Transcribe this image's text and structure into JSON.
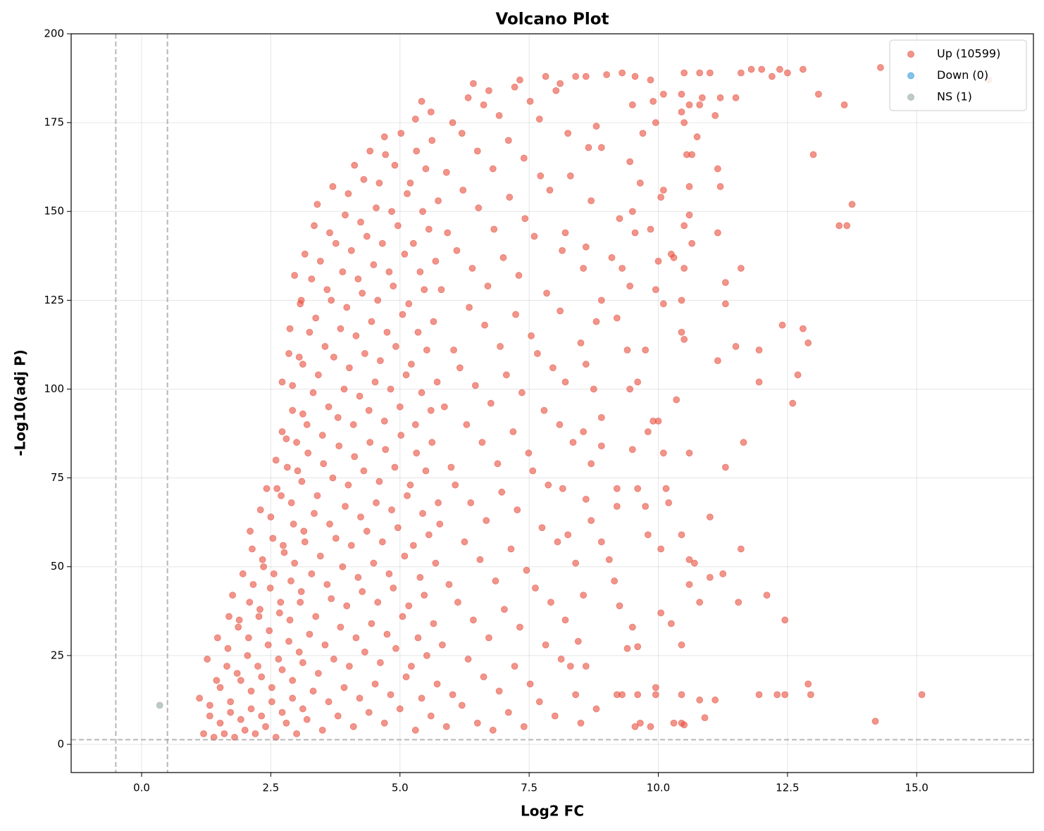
{
  "chart_data": {
    "type": "scatter",
    "title": "Volcano Plot",
    "x_label": "Log2 FC",
    "y_label": "-Log10(adj P)",
    "xlim": [
      -1.364,
      17.26
    ],
    "ylim": [
      -7.93,
      200
    ],
    "xticks": [
      {
        "value": 0,
        "label": "0.0"
      },
      2.5,
      {
        "value": 5,
        "label": "5.0"
      },
      7.5,
      {
        "value": 10,
        "label": "10.0"
      },
      12.5,
      {
        "value": 15,
        "label": "15.0"
      }
    ],
    "yticks": [
      0,
      25,
      50,
      75,
      100,
      125,
      150,
      175,
      200
    ],
    "grid": true,
    "legend": "upper right",
    "threshold_x": [
      -0.5,
      0.5
    ],
    "threshold_y": [
      1.3
    ],
    "series": [
      {
        "name": "Up (10599)",
        "color": "#e74c3c",
        "x": [
          16.4,
          14.3,
          13.6,
          13.1,
          13.0,
          13.75,
          13.5,
          13.65,
          12.8,
          12.35,
          12.0,
          11.8,
          11.6,
          12.5,
          12.2,
          11.5,
          11.2,
          11.1,
          11.15,
          11.2,
          11.15,
          11.6,
          11.3,
          11.3,
          12.4,
          12.8,
          12.9,
          11.95,
          11.5,
          11.15,
          12.7,
          11.95,
          12.6,
          11.65,
          11.3,
          11.0,
          11.6,
          11.25,
          11.0,
          12.1,
          11.55,
          12.45,
          12.9,
          12.95,
          12.3,
          12.45,
          11.95,
          11.1,
          10.8,
          14.2,
          15.1,
          10.6,
          10.7,
          10.8,
          10.6,
          10.9,
          10.45,
          10.3,
          10.5,
          10.45,
          10.25,
          10.05,
          9.95,
          9.95,
          10.45,
          10.05,
          10.45,
          10.2,
          10.15,
          10.6,
          10.1,
          10.35,
          9.9,
          10.0,
          9.8,
          9.95,
          10.1,
          10.3,
          10.25,
          10.5,
          10.45,
          10.45,
          10.5,
          10.5,
          10.6,
          10.65,
          10.0,
          10.05,
          10.1,
          10.6,
          10.55,
          10.75,
          10.65,
          10.5,
          10.45,
          10.6,
          10.8,
          10.1,
          10.45,
          10.5,
          10.8,
          11.0,
          10.85,
          9.7,
          9.95,
          9.9,
          9.85,
          9.55,
          9.3,
          9.0,
          9.5,
          9.45,
          9.65,
          9.5,
          9.85,
          9.55,
          9.25,
          9.1,
          9.45,
          9.3,
          9.2,
          9.4,
          9.75,
          9.6,
          9.45,
          9.5,
          9.6,
          9.2,
          9.2,
          9.75,
          9.8,
          8.9,
          9.05,
          9.25,
          9.5,
          9.6,
          9.4,
          9.2,
          9.3,
          9.6,
          9.55,
          9.65,
          9.85,
          9.15,
          8.8,
          8.65,
          8.9,
          8.7,
          8.6,
          8.55,
          8.9,
          8.8,
          8.5,
          8.6,
          8.75,
          8.9,
          8.55,
          8.9,
          8.7,
          8.6,
          8.7,
          8.4,
          8.55,
          8.45,
          8.6,
          8.4,
          8.8,
          8.5,
          8.3,
          8.2,
          8.25,
          8.15,
          8.35,
          8.2,
          8.1,
          8.2,
          8.3,
          8.25,
          8.1,
          8.4,
          8.6,
          1.2,
          1.32,
          1.12,
          1.4,
          1.52,
          1.32,
          1.45,
          1.27,
          1.6,
          1.72,
          1.52,
          1.65,
          1.47,
          1.69,
          1.8,
          1.92,
          1.72,
          1.85,
          1.67,
          1.89,
          1.76,
          2.0,
          2.12,
          1.92,
          2.05,
          1.87,
          2.09,
          1.96,
          2.14,
          2.2,
          2.32,
          2.12,
          2.25,
          2.07,
          2.29,
          2.16,
          2.34,
          2.1,
          2.4,
          2.52,
          2.32,
          2.45,
          2.27,
          2.49,
          2.36,
          2.54,
          2.3,
          2.42,
          2.6,
          2.72,
          2.52,
          2.65,
          2.47,
          2.69,
          2.56,
          2.74,
          2.5,
          2.62,
          2.6,
          2.72,
          2.8,
          2.92,
          2.72,
          2.85,
          2.67,
          2.89,
          2.76,
          2.94,
          2.7,
          2.82,
          2.8,
          2.92,
          2.72,
          2.85,
          3.0,
          3.12,
          2.92,
          3.05,
          2.87,
          3.09,
          2.96,
          3.14,
          2.9,
          3.02,
          3.0,
          3.12,
          2.92,
          3.05,
          2.87,
          3.09,
          2.96,
          3.2,
          3.32,
          3.12,
          3.25,
          3.07,
          3.29,
          3.16,
          3.34,
          3.1,
          3.22,
          3.2,
          3.32,
          3.12,
          3.25,
          3.07,
          3.29,
          3.16,
          3.34,
          3.5,
          3.62,
          3.42,
          3.55,
          3.37,
          3.59,
          3.46,
          3.64,
          3.4,
          3.52,
          3.5,
          3.62,
          3.42,
          3.55,
          3.37,
          3.59,
          3.46,
          3.64,
          3.4,
          3.8,
          3.92,
          3.72,
          3.85,
          3.67,
          3.89,
          3.76,
          3.94,
          3.7,
          3.82,
          3.8,
          3.92,
          3.72,
          3.85,
          3.67,
          3.89,
          3.76,
          3.94,
          3.7,
          4.1,
          4.22,
          4.02,
          4.15,
          3.97,
          4.19,
          4.06,
          4.24,
          4.0,
          4.12,
          4.1,
          4.22,
          4.02,
          4.15,
          3.97,
          4.19,
          4.06,
          4.24,
          4.0,
          4.12,
          4.4,
          4.52,
          4.32,
          4.45,
          4.27,
          4.49,
          4.36,
          4.54,
          4.3,
          4.42,
          4.4,
          4.52,
          4.32,
          4.45,
          4.27,
          4.49,
          4.36,
          4.54,
          4.3,
          4.42,
          4.7,
          4.82,
          4.62,
          4.75,
          4.57,
          4.79,
          4.66,
          4.84,
          4.6,
          4.72,
          4.7,
          4.82,
          4.62,
          4.75,
          4.57,
          4.79,
          4.66,
          4.84,
          4.6,
          4.72,
          4.7,
          5.0,
          5.12,
          4.92,
          5.05,
          4.87,
          5.09,
          4.96,
          5.14,
          4.9,
          5.02,
          5.0,
          5.12,
          4.92,
          5.05,
          4.87,
          5.09,
          4.96,
          5.14,
          4.9,
          5.02,
          5.3,
          5.42,
          5.22,
          5.35,
          5.17,
          5.39,
          5.26,
          5.44,
          5.2,
          5.32,
          5.3,
          5.42,
          5.22,
          5.35,
          5.17,
          5.39,
          5.26,
          5.44,
          5.2,
          5.32,
          5.3,
          5.42,
          5.6,
          5.72,
          5.52,
          5.65,
          5.47,
          5.69,
          5.56,
          5.74,
          5.5,
          5.62,
          5.6,
          5.72,
          5.52,
          5.65,
          5.47,
          5.69,
          5.56,
          5.74,
          5.5,
          5.62,
          5.6,
          5.9,
          6.02,
          5.82,
          5.95,
          5.77,
          5.99,
          5.86,
          6.04,
          5.8,
          5.92,
          5.9,
          6.02,
          6.2,
          6.32,
          6.12,
          6.25,
          6.07,
          6.29,
          6.16,
          6.34,
          6.1,
          6.22,
          6.2,
          6.32,
          6.5,
          6.62,
          6.42,
          6.55,
          6.37,
          6.59,
          6.46,
          6.64,
          6.4,
          6.52,
          6.5,
          6.62,
          6.42,
          6.8,
          6.92,
          6.72,
          6.85,
          6.67,
          6.89,
          6.76,
          6.94,
          6.7,
          6.82,
          6.8,
          6.92,
          6.72,
          7.1,
          7.22,
          7.02,
          7.15,
          6.97,
          7.19,
          7.06,
          7.24,
          7.0,
          7.12,
          7.1,
          7.22,
          7.4,
          7.52,
          7.32,
          7.45,
          7.27,
          7.49,
          7.36,
          7.54,
          7.3,
          7.42,
          7.4,
          7.52,
          7.32,
          7.7,
          7.82,
          7.62,
          7.75,
          7.57,
          7.79,
          7.66,
          7.84,
          7.6,
          7.72,
          7.7,
          7.82,
          8.0,
          8.12,
          7.92,
          8.05,
          7.87,
          8.09,
          7.96,
          8.14,
          7.9,
          8.02
        ],
        "values": [
          187,
          190.5,
          180,
          183,
          166,
          152,
          146,
          146,
          190,
          190,
          190,
          190,
          189,
          189,
          188,
          182,
          182,
          177,
          162,
          157,
          144,
          134,
          130,
          124,
          118,
          117,
          113,
          111,
          112,
          108,
          104,
          102,
          96,
          85,
          78,
          64,
          55,
          48,
          47,
          42,
          40,
          35,
          17,
          14,
          14,
          14,
          14,
          12.5,
          12.5,
          6.5,
          14,
          52,
          51,
          40,
          45,
          7.5,
          6,
          6,
          5.5,
          14,
          34,
          37,
          16,
          14,
          28,
          55,
          59,
          68,
          72,
          82,
          82,
          97,
          91,
          91,
          88,
          128,
          124,
          137,
          138,
          114,
          116,
          125,
          134,
          146,
          149,
          141,
          136,
          154,
          156,
          157,
          166,
          171,
          166,
          175,
          178,
          180,
          180,
          183,
          183,
          189,
          189,
          189,
          182,
          172,
          175,
          181,
          187,
          188,
          189,
          188.5,
          180,
          164,
          158,
          150,
          145,
          144,
          148,
          137,
          129,
          134,
          120,
          111,
          111,
          102,
          100,
          83,
          72,
          72,
          67,
          67,
          59,
          57,
          52,
          39,
          33,
          27.5,
          27,
          14,
          14,
          14,
          5,
          6,
          5,
          46,
          174,
          168,
          168,
          153,
          140,
          134,
          125,
          119,
          113,
          107,
          100,
          92,
          88,
          84,
          79,
          69,
          63,
          51,
          42,
          29,
          22,
          14,
          10,
          6,
          22,
          35,
          59,
          72,
          85,
          102,
          122,
          144,
          160,
          172,
          186,
          188,
          188,
          3,
          8,
          13,
          2,
          6,
          11,
          18,
          24,
          3,
          9,
          16,
          22,
          30,
          36,
          2,
          7,
          12,
          20,
          27,
          35,
          42,
          4,
          10,
          18,
          25,
          33,
          40,
          48,
          55,
          3,
          8,
          15,
          22,
          30,
          38,
          45,
          52,
          60,
          5,
          12,
          19,
          28,
          36,
          44,
          50,
          58,
          66,
          72,
          2,
          9,
          16,
          24,
          32,
          40,
          48,
          56,
          64,
          72,
          80,
          88,
          6,
          13,
          21,
          29,
          37,
          46,
          54,
          62,
          70,
          78,
          86,
          94,
          102,
          110,
          3,
          10,
          18,
          26,
          35,
          43,
          51,
          60,
          68,
          77,
          85,
          93,
          101,
          109,
          117,
          125,
          132,
          7,
          15,
          23,
          31,
          40,
          48,
          57,
          65,
          74,
          82,
          90,
          99,
          107,
          116,
          124,
          131,
          138,
          146,
          4,
          12,
          20,
          28,
          36,
          45,
          53,
          62,
          70,
          79,
          87,
          95,
          104,
          112,
          120,
          128,
          136,
          144,
          152,
          8,
          16,
          24,
          33,
          41,
          50,
          58,
          67,
          75,
          84,
          92,
          100,
          109,
          117,
          125,
          133,
          141,
          149,
          157,
          5,
          13,
          22,
          30,
          39,
          47,
          56,
          64,
          73,
          81,
          90,
          98,
          106,
          115,
          123,
          131,
          139,
          147,
          155,
          163,
          9,
          17,
          26,
          34,
          43,
          51,
          60,
          68,
          77,
          85,
          94,
          102,
          110,
          119,
          127,
          135,
          143,
          151,
          159,
          167,
          6,
          14,
          23,
          31,
          40,
          48,
          57,
          66,
          74,
          83,
          91,
          100,
          108,
          116,
          125,
          133,
          141,
          150,
          158,
          166,
          171,
          10,
          19,
          27,
          36,
          44,
          53,
          61,
          70,
          78,
          87,
          95,
          104,
          112,
          121,
          129,
          138,
          146,
          155,
          163,
          172,
          4,
          13,
          22,
          30,
          39,
          47,
          56,
          65,
          73,
          82,
          90,
          99,
          107,
          116,
          124,
          133,
          141,
          150,
          158,
          167,
          176,
          181,
          8,
          17,
          25,
          34,
          42,
          51,
          59,
          68,
          77,
          85,
          94,
          102,
          111,
          119,
          128,
          136,
          145,
          153,
          162,
          170,
          178,
          5,
          14,
          28,
          45,
          62,
          78,
          95,
          111,
          128,
          144,
          161,
          175,
          11,
          24,
          40,
          57,
          73,
          90,
          106,
          123,
          139,
          156,
          172,
          182,
          6,
          19,
          35,
          52,
          68,
          85,
          101,
          118,
          134,
          151,
          167,
          180,
          186,
          4,
          15,
          30,
          46,
          63,
          79,
          96,
          112,
          129,
          145,
          162,
          177,
          184,
          9,
          22,
          38,
          55,
          71,
          88,
          104,
          121,
          137,
          154,
          170,
          185,
          5,
          17,
          33,
          49,
          66,
          82,
          99,
          115,
          132,
          148,
          165,
          181,
          187,
          12,
          28,
          44,
          61,
          77,
          94,
          110,
          127,
          143,
          160,
          176,
          188,
          8,
          24,
          40,
          57,
          73,
          90,
          106,
          139,
          156,
          184
        ]
      },
      {
        "name": "Down (0)",
        "color": "#3498db",
        "x": [],
        "values": []
      },
      {
        "name": "NS (1)",
        "color": "#95a5a6",
        "x": [
          0.35
        ],
        "values": [
          11
        ]
      }
    ]
  }
}
